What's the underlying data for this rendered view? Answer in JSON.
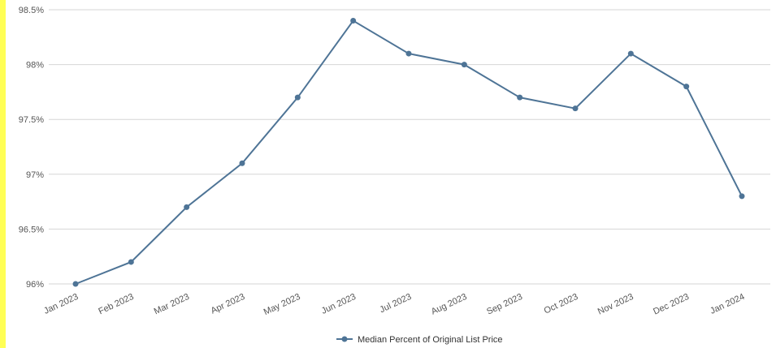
{
  "chart_data": {
    "type": "line",
    "title": "",
    "xlabel": "",
    "ylabel": "",
    "categories": [
      "Jan 2023",
      "Feb 2023",
      "Mar 2023",
      "Apr 2023",
      "May 2023",
      "Jun 2023",
      "Jul 2023",
      "Aug 2023",
      "Sep 2023",
      "Oct 2023",
      "Nov 2023",
      "Dec 2023",
      "Jan 2024"
    ],
    "series": [
      {
        "name": "Median Percent of Original List Price",
        "values": [
          96.0,
          96.2,
          96.7,
          97.1,
          97.7,
          98.4,
          98.1,
          98.0,
          97.7,
          97.6,
          98.1,
          97.8,
          96.8
        ]
      }
    ],
    "ylim": [
      96,
      98.5
    ],
    "yticks": [
      96,
      96.5,
      97,
      97.5,
      98,
      98.5
    ],
    "ytick_labels": [
      "96%",
      "96.5%",
      "97%",
      "97.5%",
      "98%",
      "98.5%"
    ],
    "grid": "horizontal",
    "legend_position": "bottom-center",
    "colors": {
      "series": "#4e7496",
      "accent_bar": "#ffff55"
    }
  }
}
